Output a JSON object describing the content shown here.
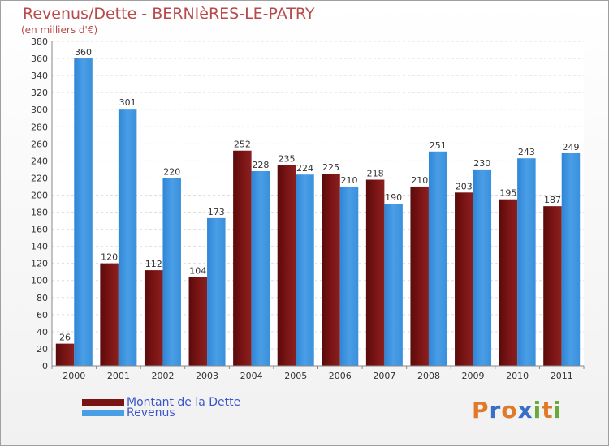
{
  "title": "Revenus/Dette - BERNIèRES-LE-PATRY",
  "subtitle": "(en milliers d'€)",
  "colors": {
    "dette": "#7a1414",
    "revenus": "#4a9ee6"
  },
  "legend": {
    "dette": "Montant de la Dette",
    "revenus": "Revenus"
  },
  "logo": {
    "text": "Proxiti",
    "letters": [
      "P",
      "r",
      "o",
      "x",
      "i",
      "t",
      "i"
    ],
    "colors": [
      "#e0792a",
      "#3a6fc8",
      "#e0792a",
      "#3a6fc8",
      "#6aa83a",
      "#e0792a",
      "#6aa83a"
    ]
  },
  "chart_data": {
    "type": "bar",
    "title": "Revenus/Dette - BERNIèRES-LE-PATRY",
    "subtitle": "(en milliers d'€)",
    "categories": [
      "2000",
      "2001",
      "2002",
      "2003",
      "2004",
      "2005",
      "2006",
      "2007",
      "2008",
      "2009",
      "2010",
      "2011"
    ],
    "series": [
      {
        "name": "Montant de la Dette",
        "values": [
          26,
          120,
          112,
          104,
          252,
          235,
          225,
          218,
          210,
          203,
          195,
          187
        ]
      },
      {
        "name": "Revenus",
        "values": [
          360,
          301,
          220,
          173,
          228,
          224,
          210,
          190,
          251,
          230,
          243,
          249
        ]
      }
    ],
    "ylim": [
      0,
      380
    ],
    "yticks": [
      0,
      20,
      40,
      60,
      80,
      100,
      120,
      140,
      160,
      180,
      200,
      220,
      240,
      260,
      280,
      300,
      320,
      340,
      360,
      380
    ],
    "grid": true,
    "legend_position": "bottom-left"
  }
}
